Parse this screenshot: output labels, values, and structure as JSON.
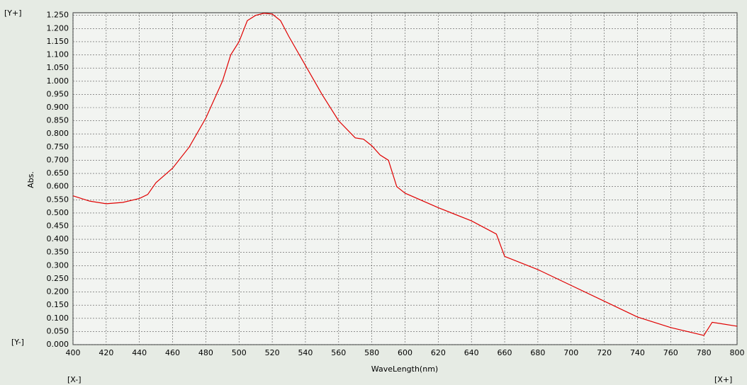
{
  "chart_data": {
    "type": "line",
    "xlabel": "WaveLength(nm)",
    "ylabel": "Abs.",
    "corner_labels": {
      "y_plus": "[Y+]",
      "y_minus": "[Y-]",
      "x_minus": "[X-]",
      "x_plus": "[X+]"
    },
    "x": [
      400,
      410,
      420,
      430,
      440,
      445,
      450,
      460,
      470,
      480,
      490,
      495,
      500,
      505,
      510,
      515,
      520,
      525,
      530,
      540,
      550,
      560,
      570,
      575,
      580,
      585,
      590,
      595,
      600,
      620,
      640,
      655,
      660,
      680,
      700,
      720,
      740,
      760,
      780,
      785,
      800
    ],
    "series": [
      {
        "color": "#e00000",
        "values": [
          0.565,
          0.545,
          0.535,
          0.54,
          0.555,
          0.57,
          0.615,
          0.67,
          0.75,
          0.86,
          1.0,
          1.1,
          1.15,
          1.23,
          1.25,
          1.258,
          1.255,
          1.23,
          1.17,
          1.06,
          0.95,
          0.85,
          0.785,
          0.78,
          0.755,
          0.72,
          0.7,
          0.6,
          0.575,
          0.52,
          0.47,
          0.42,
          0.335,
          0.285,
          0.225,
          0.165,
          0.105,
          0.065,
          0.035,
          0.085,
          0.07
        ]
      }
    ],
    "xlim": [
      400,
      800
    ],
    "xticks": [
      400,
      420,
      440,
      460,
      480,
      500,
      520,
      540,
      560,
      580,
      600,
      620,
      640,
      660,
      680,
      700,
      720,
      740,
      760,
      780,
      800
    ],
    "ylim": [
      0,
      1.26
    ],
    "yticks": [
      {
        "value": 0,
        "label": "0.000"
      },
      {
        "value": 0.05,
        "label": "0.050"
      },
      {
        "value": 0.1,
        "label": "0.100"
      },
      {
        "value": 0.15,
        "label": "0.150"
      },
      {
        "value": 0.2,
        "label": "0.200"
      },
      {
        "value": 0.25,
        "label": "0.250"
      },
      {
        "value": 0.3,
        "label": "0.300"
      },
      {
        "value": 0.35,
        "label": "0.350"
      },
      {
        "value": 0.4,
        "label": "0.400"
      },
      {
        "value": 0.45,
        "label": "0.450"
      },
      {
        "value": 0.5,
        "label": "0.500"
      },
      {
        "value": 0.55,
        "label": "0.550"
      },
      {
        "value": 0.6,
        "label": "0.600"
      },
      {
        "value": 0.65,
        "label": "0.650"
      },
      {
        "value": 0.7,
        "label": "0.700"
      },
      {
        "value": 0.75,
        "label": "0.750"
      },
      {
        "value": 0.8,
        "label": "0.800"
      },
      {
        "value": 0.85,
        "label": "0.850"
      },
      {
        "value": 0.9,
        "label": "0.900"
      },
      {
        "value": 0.95,
        "label": "0.950"
      },
      {
        "value": 1.0,
        "label": "1.000"
      },
      {
        "value": 1.05,
        "label": "1.050"
      },
      {
        "value": 1.1,
        "label": "1.100"
      },
      {
        "value": 1.15,
        "label": "1.150"
      },
      {
        "value": 1.2,
        "label": "1.200"
      },
      {
        "value": 1.25,
        "label": "1.250"
      }
    ],
    "grid": true
  }
}
